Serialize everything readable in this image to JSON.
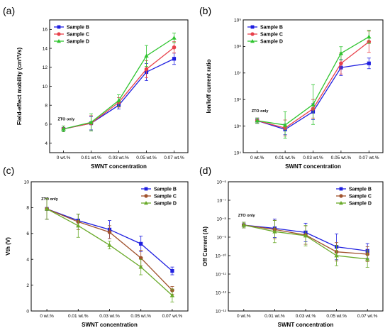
{
  "chart_data": [
    {
      "panel": "(a)",
      "type": "line",
      "ylabel": "Field-effect mobility (cm²/Vs)",
      "xlabel": "SWNT concentration",
      "annotation": "ZTO only",
      "categories": [
        "0 wt.%",
        "0.01 wt.%",
        "0.03 wt.%",
        "0.05 wt.%",
        "0.07 wt.%"
      ],
      "ylim": [
        3,
        17
      ],
      "yscale": "linear",
      "yticks": [
        {
          "v": 4,
          "label": "4"
        },
        {
          "v": 6,
          "label": "6"
        },
        {
          "v": 8,
          "label": "8"
        },
        {
          "v": 10,
          "label": "10"
        },
        {
          "v": 12,
          "label": "12"
        },
        {
          "v": 14,
          "label": "14"
        },
        {
          "v": 16,
          "label": "16"
        }
      ],
      "series": [
        {
          "name": "Sample B",
          "color": "#1f1fe0",
          "marker": "square",
          "values": [
            5.5,
            6.1,
            8.0,
            11.5,
            12.9
          ],
          "err": [
            0.3,
            0.7,
            0.4,
            0.9,
            0.6
          ]
        },
        {
          "name": "Sample C",
          "color": "#e8414b",
          "marker": "circle",
          "values": [
            5.5,
            6.1,
            8.3,
            11.8,
            14.1
          ],
          "err": [
            0.3,
            0.8,
            0.5,
            0.9,
            0.6
          ]
        },
        {
          "name": "Sample D",
          "color": "#2fc42f",
          "marker": "triangle",
          "values": [
            5.5,
            6.2,
            8.5,
            13.2,
            15.1
          ],
          "err": [
            0.3,
            0.9,
            0.6,
            1.1,
            0.5
          ]
        }
      ]
    },
    {
      "panel": "(b)",
      "type": "line",
      "ylabel": "Ion/Ioff current ratio",
      "xlabel": "SWNT concentration",
      "annotation": "ZTO only",
      "categories": [
        "0 wt.%",
        "0.01 wt.%",
        "0.03 wt.%",
        "0.05 wt.%",
        "0.07 wt.%"
      ],
      "ylim": [
        4,
        9
      ],
      "yscale": "log10",
      "yticks": [
        {
          "v": 4,
          "label": "10⁴"
        },
        {
          "v": 5,
          "label": "10⁵"
        },
        {
          "v": 6,
          "label": "10⁶"
        },
        {
          "v": 7,
          "label": "10⁷"
        },
        {
          "v": 8,
          "label": "10⁸"
        },
        {
          "v": 9,
          "label": "10⁹"
        }
      ],
      "series": [
        {
          "name": "Sample B",
          "color": "#1f1fe0",
          "marker": "square",
          "values": [
            160000.0,
            75000.0,
            350000.0,
            16000000.0,
            23000000.0
          ],
          "err_log": [
            0.1,
            0.2,
            0.3,
            0.3,
            0.2
          ]
        },
        {
          "name": "Sample C",
          "color": "#e8414b",
          "marker": "circle",
          "values": [
            160000.0,
            85000.0,
            450000.0,
            23000000.0,
            150000000.0
          ],
          "err_log": [
            0.1,
            0.3,
            0.35,
            0.4,
            0.4
          ]
        },
        {
          "name": "Sample D",
          "color": "#2fc42f",
          "marker": "triangle",
          "values": [
            160000.0,
            110000.0,
            650000.0,
            55000000.0,
            230000000.0
          ],
          "err_log": [
            0.1,
            0.5,
            0.75,
            0.25,
            0.25
          ]
        }
      ]
    },
    {
      "panel": "(c)",
      "type": "line",
      "ylabel": "Vth (V)",
      "xlabel": "SWNT concentration",
      "annotation": "ZTO only",
      "categories": [
        "0 wt.%",
        "0.01 wt.%",
        "0.03 wt.%",
        "0.05 wt.%",
        "0.07 wt.%"
      ],
      "ylim": [
        0,
        10
      ],
      "yscale": "linear",
      "yticks": [
        {
          "v": 0,
          "label": "0"
        },
        {
          "v": 2,
          "label": "2"
        },
        {
          "v": 4,
          "label": "4"
        },
        {
          "v": 6,
          "label": "6"
        },
        {
          "v": 8,
          "label": "8"
        },
        {
          "v": 10,
          "label": "10"
        }
      ],
      "series": [
        {
          "name": "Sample B",
          "color": "#1f1fe0",
          "marker": "square",
          "values": [
            7.9,
            7.0,
            6.3,
            5.2,
            3.1
          ],
          "err": [
            0.8,
            0.5,
            0.7,
            0.6,
            0.3
          ]
        },
        {
          "name": "Sample C",
          "color": "#a0522d",
          "marker": "circle",
          "values": [
            7.9,
            6.9,
            6.1,
            4.1,
            1.6
          ],
          "err": [
            0.8,
            0.6,
            0.5,
            0.6,
            0.3
          ]
        },
        {
          "name": "Sample D",
          "color": "#6aaa2a",
          "marker": "triangle",
          "values": [
            7.9,
            6.6,
            5.1,
            3.4,
            1.2
          ],
          "err": [
            0.8,
            0.9,
            0.3,
            0.6,
            0.5
          ]
        }
      ]
    },
    {
      "panel": "(d)",
      "type": "line",
      "ylabel": "Off Current (A)",
      "xlabel": "SWNT concentration",
      "annotation": "ZTO only",
      "categories": [
        "0 wt.%",
        "0.01 wt.%",
        "0.03 wt.%",
        "0.05 wt.%",
        "0.07 wt.%"
      ],
      "ylim": [
        -13,
        -6
      ],
      "yscale": "log10",
      "yticks": [
        {
          "v": -13,
          "label": "10⁻¹³"
        },
        {
          "v": -12,
          "label": "10⁻¹²"
        },
        {
          "v": -11,
          "label": "10⁻¹¹"
        },
        {
          "v": -10,
          "label": "10⁻¹⁰"
        },
        {
          "v": -9,
          "label": "10⁻⁹"
        },
        {
          "v": -8,
          "label": "10⁻⁸"
        },
        {
          "v": -7,
          "label": "10⁻⁷"
        },
        {
          "v": -6,
          "label": "10⁻⁶"
        }
      ],
      "series": [
        {
          "name": "Sample B",
          "color": "#1f1fe0",
          "marker": "square",
          "values": [
            4.5e-09,
            3e-09,
            1.8e-09,
            3e-10,
            1.8e-10
          ],
          "err_log": [
            0.15,
            0.5,
            0.5,
            0.7,
            0.4
          ]
        },
        {
          "name": "Sample C",
          "color": "#a0522d",
          "marker": "circle",
          "values": [
            4.5e-09,
            2.6e-09,
            1.3e-09,
            1.6e-10,
            1.2e-10
          ],
          "err_log": [
            0.15,
            0.5,
            0.5,
            0.5,
            0.4
          ]
        },
        {
          "name": "Sample D",
          "color": "#6aaa2a",
          "marker": "triangle",
          "values": [
            4.5e-09,
            2e-09,
            1.2e-09,
            1e-10,
            6.5e-11
          ],
          "err_log": [
            0.15,
            0.6,
            0.55,
            0.55,
            0.45
          ]
        }
      ]
    }
  ]
}
